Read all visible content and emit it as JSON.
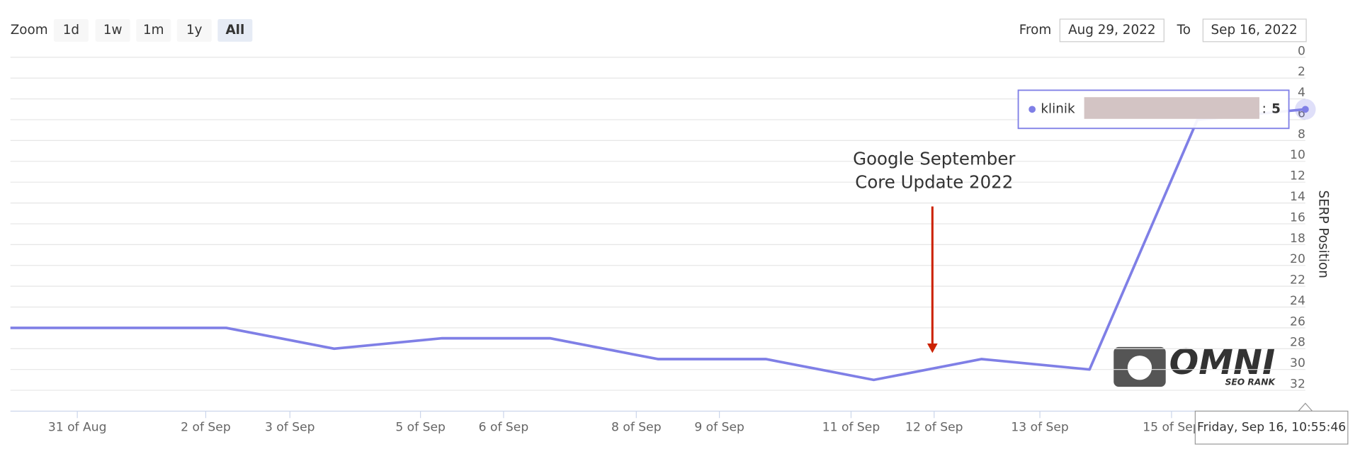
{
  "chart_data": {
    "type": "line",
    "toolbar": {
      "zoom_label": "Zoom",
      "buttons": [
        "1d",
        "1w",
        "1m",
        "1y",
        "All"
      ],
      "disabled": [
        "1d",
        "1m",
        "1y"
      ],
      "selected": "All",
      "from_label": "From",
      "from": "Aug 29, 2022",
      "to_label": "To",
      "to": "Sep 16, 2022"
    },
    "y_label": "SERP Position",
    "annotation": {
      "lines": [
        "Google September",
        "Core Update 2022"
      ],
      "color": "#cc2200"
    },
    "x": [
      0,
      1,
      2,
      3,
      4,
      5,
      6,
      7,
      8,
      9,
      10,
      11,
      12
    ],
    "xlim": [
      0,
      12
    ],
    "xticks": [
      {
        "value": 0.62,
        "label": "31 of Aug"
      },
      {
        "value": 1.81,
        "label": "2 of Sep"
      },
      {
        "value": 2.59,
        "label": "3 of Sep"
      },
      {
        "value": 3.8,
        "label": "5 of Sep"
      },
      {
        "value": 4.57,
        "label": "6 of Sep"
      },
      {
        "value": 5.8,
        "label": "8 of Sep"
      },
      {
        "value": 6.57,
        "label": "9 of Sep"
      },
      {
        "value": 7.79,
        "label": "11 of Sep"
      },
      {
        "value": 8.56,
        "label": "12 of Sep"
      },
      {
        "value": 9.54,
        "label": "13 of Sep"
      },
      {
        "value": 10.76,
        "label": "15 of Sep"
      }
    ],
    "annotation_x": 8.56,
    "series": [
      {
        "name": "klinik",
        "color": "#7f7fe6",
        "values": [
          26,
          26,
          26,
          28,
          27,
          27,
          29,
          29,
          31,
          29,
          30,
          6,
          5
        ]
      }
    ],
    "ylim": [
      0,
      34
    ],
    "reversed": true,
    "yticks": [
      0,
      2,
      4,
      6,
      8,
      10,
      12,
      14,
      16,
      18,
      20,
      22,
      24,
      26,
      28,
      30,
      32
    ],
    "grid": true,
    "tooltip": {
      "separator": ":"
    },
    "crosshair_label": "Friday, Sep 16, 10:55:46",
    "logo": {
      "title": "OMNI",
      "subtitle": "SEO RANK"
    }
  }
}
